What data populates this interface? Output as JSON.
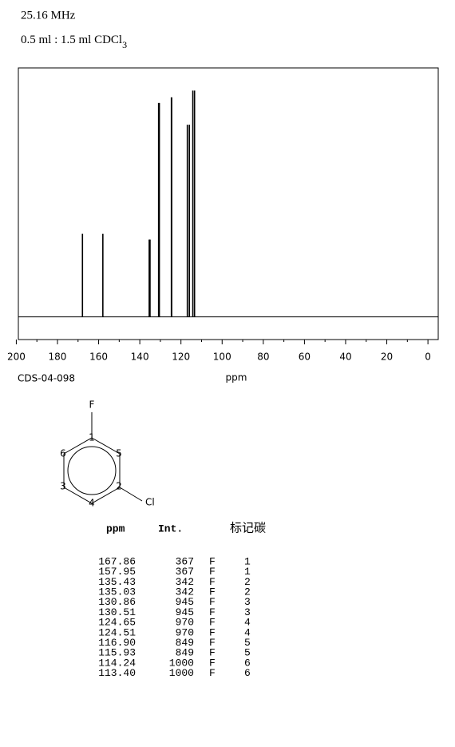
{
  "header": {
    "line1": "25.16 MHz",
    "line2": "0.5 ml : 1.5 ml CDCl",
    "line2_sub": "3"
  },
  "chart_data": {
    "type": "stem",
    "code": "CDS-04-098",
    "x_label": "ppm",
    "x": [
      167.86,
      157.95,
      135.43,
      135.03,
      130.86,
      130.51,
      124.65,
      124.51,
      {
        "value": 116.9,
        "label": "116.90"
      },
      115.93,
      114.24,
      {
        "value": 113.4,
        "label": "113.40"
      }
    ],
    "values": [
      367,
      367,
      342,
      342,
      945,
      945,
      970,
      970,
      849,
      849,
      1000,
      1000
    ],
    "color": "#000000",
    "xlim": [
      199,
      -5
    ],
    "ylim": [
      -100,
      1100
    ],
    "xticks": [
      200,
      180,
      160,
      140,
      120,
      100,
      80,
      60,
      40,
      20,
      0
    ]
  },
  "structure": {
    "substituent_top": "F",
    "substituent_right": "Cl",
    "atoms": [
      "1",
      "5",
      "6",
      "2",
      "3",
      "4"
    ]
  },
  "table": {
    "headers": [
      "ppm",
      "Int.",
      "标记碳"
    ],
    "rows": [
      [
        "F",
        "1"
      ],
      [
        "F",
        "1"
      ],
      [
        "F",
        "2"
      ],
      [
        "F",
        "2"
      ],
      [
        "F",
        "3"
      ],
      [
        "F",
        "3"
      ],
      [
        "F",
        "4"
      ],
      [
        "F",
        "4"
      ],
      [
        "F",
        "5"
      ],
      [
        "F",
        "5"
      ],
      [
        "F",
        "6"
      ],
      [
        "F",
        "6"
      ]
    ]
  }
}
